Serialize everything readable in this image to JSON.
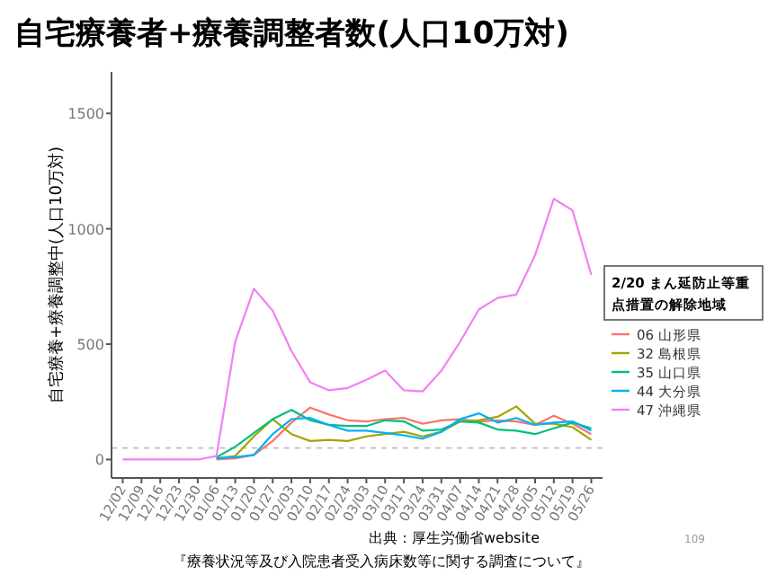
{
  "chart_data": {
    "type": "line",
    "title": "自宅療養者+療養調整者数(人口10万対)",
    "ylabel": "自宅療養+療養調整中(人口10万対)",
    "legend_title": "2/20 まん延防止等重点措置の解除地域",
    "categories": [
      "12/02",
      "12/09",
      "12/16",
      "12/23",
      "12/30",
      "01/06",
      "01/13",
      "01/20",
      "01/27",
      "02/03",
      "02/10",
      "02/17",
      "02/24",
      "03/03",
      "03/10",
      "03/17",
      "03/24",
      "03/31",
      "04/07",
      "04/14",
      "04/21",
      "04/28",
      "05/05",
      "05/12",
      "05/19",
      "05/26"
    ],
    "series": [
      {
        "name": "06 山形県",
        "color": "#f8766d",
        "values": [
          null,
          null,
          null,
          null,
          null,
          0,
          5,
          20,
          80,
          160,
          225,
          195,
          170,
          165,
          175,
          180,
          155,
          170,
          175,
          165,
          170,
          165,
          150,
          190,
          155,
          110
        ]
      },
      {
        "name": "32 島根県",
        "color": "#a3a500",
        "values": [
          null,
          null,
          null,
          null,
          null,
          5,
          15,
          100,
          175,
          110,
          80,
          85,
          80,
          100,
          110,
          120,
          100,
          120,
          165,
          170,
          185,
          230,
          155,
          155,
          140,
          85
        ]
      },
      {
        "name": "35 山口県",
        "color": "#00bf7d",
        "values": [
          null,
          null,
          null,
          null,
          null,
          10,
          55,
          115,
          175,
          215,
          170,
          150,
          145,
          145,
          170,
          165,
          125,
          130,
          165,
          160,
          130,
          125,
          110,
          135,
          160,
          135
        ]
      },
      {
        "name": "44 大分県",
        "color": "#00b0f6",
        "values": [
          null,
          null,
          null,
          null,
          null,
          5,
          10,
          20,
          110,
          175,
          180,
          150,
          125,
          125,
          115,
          105,
          90,
          120,
          175,
          200,
          160,
          180,
          150,
          160,
          165,
          125
        ]
      },
      {
        "name": "47 沖縄県",
        "color": "#f080f5",
        "values": [
          0,
          0,
          0,
          0,
          0,
          15,
          510,
          740,
          645,
          470,
          335,
          300,
          310,
          345,
          385,
          300,
          295,
          385,
          510,
          650,
          700,
          715,
          885,
          1130,
          1080,
          800
        ]
      }
    ],
    "ylim": [
      -80,
      1680
    ],
    "yticks": [
      0,
      500,
      1000,
      1500
    ],
    "ref_lines": [
      {
        "axis": "y",
        "value": 50,
        "color": "#bebebe",
        "line_style": "dashed"
      }
    ],
    "legend": "right",
    "grid": false,
    "annotations": [
      "出典：厚生労働省website",
      "『療養状況等及び入院患者受入病床数等に関する調査について』",
      "109"
    ]
  }
}
